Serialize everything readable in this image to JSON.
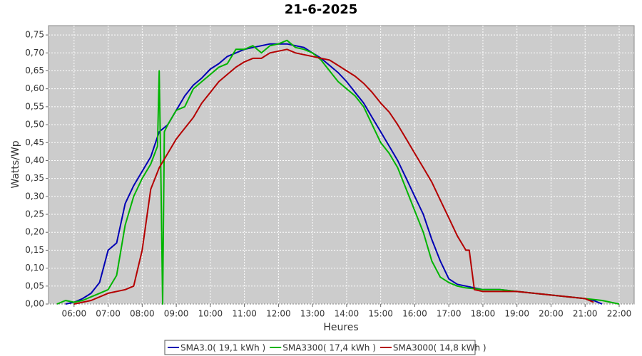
{
  "chart_data": {
    "type": "line",
    "title": "21-6-2025",
    "ylabel": "Watts/Wp",
    "xlabel": "Heures",
    "xlim": [
      5.25,
      22.44
    ],
    "ylim": [
      0,
      0.776
    ],
    "grid": true,
    "legend": "bottom",
    "xticks": [
      {
        "value": 6,
        "label": "06:00"
      },
      {
        "value": 7,
        "label": "07:00"
      },
      {
        "value": 8,
        "label": "08:00"
      },
      {
        "value": 9,
        "label": "09:00"
      },
      {
        "value": 10,
        "label": "10:00"
      },
      {
        "value": 11,
        "label": "11:00"
      },
      {
        "value": 12,
        "label": "12:00"
      },
      {
        "value": 13,
        "label": "13:00"
      },
      {
        "value": 14,
        "label": "14:00"
      },
      {
        "value": 15,
        "label": "15:00"
      },
      {
        "value": 16,
        "label": "16:00"
      },
      {
        "value": 17,
        "label": "17:00"
      },
      {
        "value": 18,
        "label": "18:00"
      },
      {
        "value": 19,
        "label": "19:00"
      },
      {
        "value": 20,
        "label": "20:00"
      },
      {
        "value": 21,
        "label": "21:00"
      },
      {
        "value": 22,
        "label": "22:00"
      }
    ],
    "yticks": [
      {
        "value": 0,
        "label": "0,00"
      },
      {
        "value": 0.05,
        "label": "0,05"
      },
      {
        "value": 0.1,
        "label": "0,10"
      },
      {
        "value": 0.15,
        "label": "0,15"
      },
      {
        "value": 0.2,
        "label": "0,20"
      },
      {
        "value": 0.25,
        "label": "0,25"
      },
      {
        "value": 0.3,
        "label": "0,30"
      },
      {
        "value": 0.35,
        "label": "0,35"
      },
      {
        "value": 0.4,
        "label": "0,40"
      },
      {
        "value": 0.45,
        "label": "0,45"
      },
      {
        "value": 0.5,
        "label": "0,50"
      },
      {
        "value": 0.55,
        "label": "0,55"
      },
      {
        "value": 0.6,
        "label": "0,60"
      },
      {
        "value": 0.65,
        "label": "0,65"
      },
      {
        "value": 0.7,
        "label": "0,70"
      },
      {
        "value": 0.75,
        "label": "0,75"
      }
    ],
    "series": [
      {
        "name": "SMA3.0( 19,1 kWh )",
        "color": "#0000b4",
        "x": [
          5.75,
          6,
          6.25,
          6.5,
          6.75,
          7,
          7.25,
          7.5,
          7.75,
          8,
          8.25,
          8.5,
          8.75,
          9,
          9.25,
          9.5,
          9.75,
          10,
          10.25,
          10.5,
          10.75,
          11,
          11.25,
          11.5,
          11.75,
          12,
          12.25,
          12.5,
          12.75,
          13,
          13.25,
          13.5,
          13.75,
          14,
          14.25,
          14.5,
          14.75,
          15,
          15.25,
          15.5,
          15.75,
          16,
          16.25,
          16.5,
          16.75,
          17,
          17.25,
          17.5,
          17.75,
          18,
          18.5,
          19,
          19.5,
          20,
          20.5,
          21,
          21.25,
          21.5
        ],
        "values": [
          0,
          0.005,
          0.015,
          0.03,
          0.06,
          0.15,
          0.17,
          0.28,
          0.33,
          0.37,
          0.41,
          0.48,
          0.5,
          0.54,
          0.58,
          0.61,
          0.63,
          0.655,
          0.67,
          0.69,
          0.7,
          0.71,
          0.715,
          0.72,
          0.725,
          0.725,
          0.725,
          0.72,
          0.715,
          0.7,
          0.685,
          0.665,
          0.645,
          0.62,
          0.59,
          0.56,
          0.52,
          0.48,
          0.44,
          0.4,
          0.35,
          0.3,
          0.25,
          0.18,
          0.12,
          0.07,
          0.055,
          0.05,
          0.045,
          0.04,
          0.04,
          0.035,
          0.03,
          0.025,
          0.02,
          0.015,
          0.01,
          0
        ]
      },
      {
        "name": "SMA3300( 17,4 kWh )",
        "color": "#00b400",
        "x": [
          5.5,
          5.75,
          6,
          6.25,
          6.5,
          6.75,
          7,
          7.25,
          7.5,
          7.75,
          8,
          8.25,
          8.45,
          8.5,
          8.55,
          8.6,
          8.65,
          8.75,
          9,
          9.25,
          9.5,
          9.75,
          10,
          10.25,
          10.5,
          10.75,
          11,
          11.25,
          11.5,
          11.75,
          12,
          12.25,
          12.5,
          12.75,
          13,
          13.25,
          13.5,
          13.75,
          14,
          14.25,
          14.5,
          14.75,
          15,
          15.25,
          15.5,
          15.75,
          16,
          16.25,
          16.5,
          16.75,
          17,
          17.25,
          17.5,
          18,
          18.5,
          19,
          19.5,
          20,
          20.5,
          21,
          21.5,
          21.75,
          22
        ],
        "values": [
          0,
          0.01,
          0.005,
          0.01,
          0.02,
          0.03,
          0.04,
          0.08,
          0.22,
          0.3,
          0.35,
          0.39,
          0.44,
          0.65,
          0.35,
          0,
          0.48,
          0.5,
          0.54,
          0.55,
          0.6,
          0.62,
          0.64,
          0.66,
          0.67,
          0.71,
          0.71,
          0.72,
          0.7,
          0.72,
          0.725,
          0.735,
          0.715,
          0.71,
          0.7,
          0.68,
          0.65,
          0.62,
          0.6,
          0.58,
          0.55,
          0.5,
          0.45,
          0.42,
          0.38,
          0.32,
          0.26,
          0.2,
          0.12,
          0.075,
          0.06,
          0.05,
          0.045,
          0.04,
          0.04,
          0.035,
          0.03,
          0.025,
          0.02,
          0.015,
          0.01,
          0.005,
          0
        ]
      },
      {
        "name": "SMA3000( 14,8 kWh )",
        "color": "#b40000",
        "x": [
          6,
          6.5,
          7,
          7.5,
          7.75,
          8,
          8.25,
          8.5,
          8.75,
          9,
          9.25,
          9.5,
          9.75,
          10,
          10.25,
          10.5,
          10.75,
          11,
          11.25,
          11.5,
          11.75,
          12,
          12.25,
          12.5,
          12.75,
          13,
          13.25,
          13.5,
          13.75,
          14,
          14.25,
          14.5,
          14.75,
          15,
          15.25,
          15.5,
          15.75,
          16,
          16.25,
          16.5,
          16.75,
          17,
          17.25,
          17.5,
          17.6,
          17.75,
          18,
          19,
          20,
          21,
          21.25
        ],
        "values": [
          0,
          0.01,
          0.03,
          0.04,
          0.05,
          0.15,
          0.32,
          0.38,
          0.42,
          0.46,
          0.49,
          0.52,
          0.56,
          0.59,
          0.62,
          0.64,
          0.66,
          0.675,
          0.685,
          0.685,
          0.7,
          0.705,
          0.71,
          0.7,
          0.695,
          0.69,
          0.685,
          0.68,
          0.665,
          0.65,
          0.635,
          0.615,
          0.59,
          0.56,
          0.535,
          0.5,
          0.46,
          0.42,
          0.38,
          0.34,
          0.29,
          0.24,
          0.19,
          0.15,
          0.15,
          0.04,
          0.035,
          0.035,
          0.025,
          0.015,
          0.005
        ]
      }
    ]
  }
}
